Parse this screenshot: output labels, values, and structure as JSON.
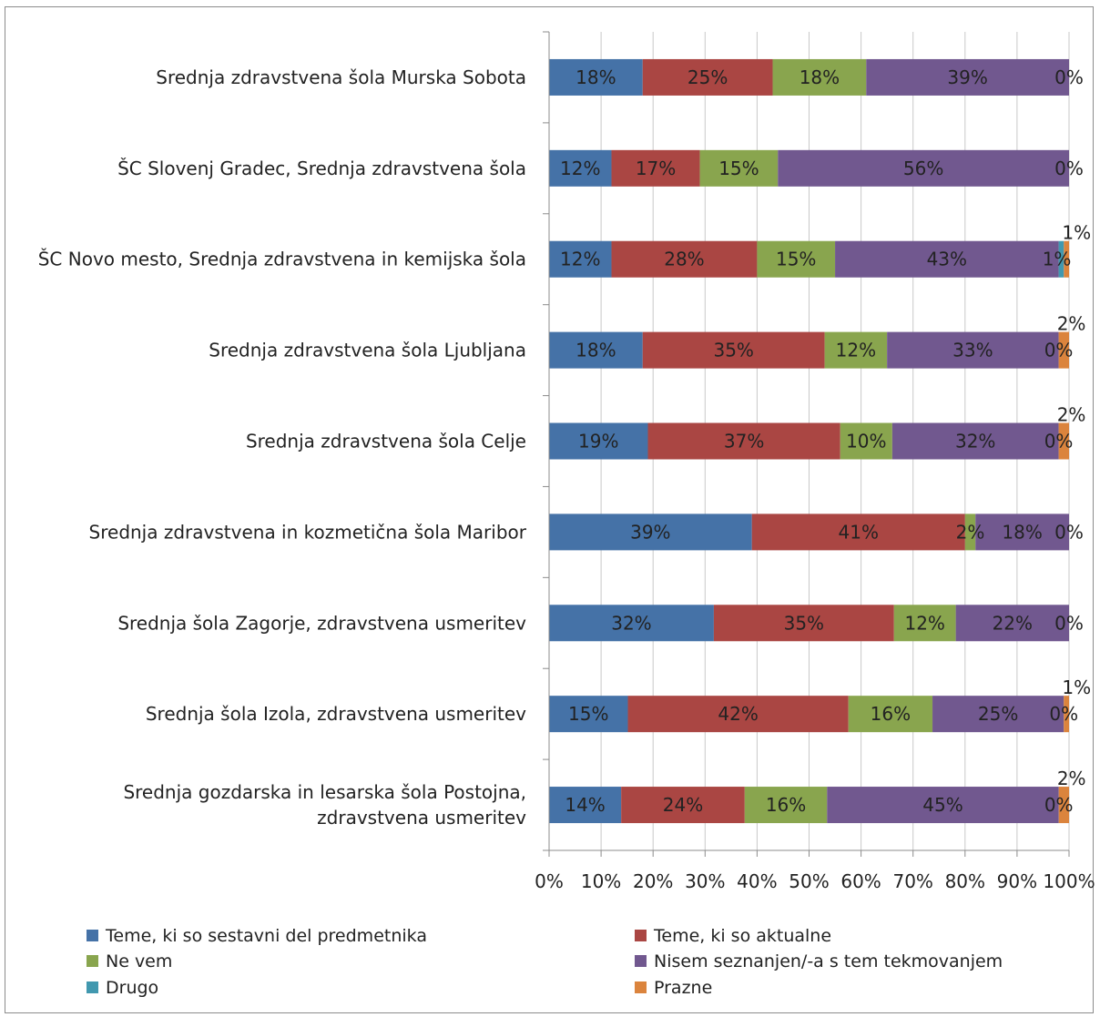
{
  "chart_data": {
    "type": "bar",
    "orientation": "horizontal",
    "stacked": "100%",
    "categories": [
      [
        "Srednja zdravstvena šola Murska Sobota"
      ],
      [
        "ŠC Slovenj Gradec, Srednja zdravstvena šola"
      ],
      [
        "ŠC Novo mesto, Srednja zdravstvena in kemijska šola"
      ],
      [
        "Srednja zdravstvena šola Ljubljana"
      ],
      [
        "Srednja zdravstvena šola Celje"
      ],
      [
        "Srednja zdravstvena in kozmetična šola Maribor"
      ],
      [
        "Srednja šola Zagorje, zdravstvena usmeritev"
      ],
      [
        "Srednja šola Izola, zdravstvena usmeritev"
      ],
      [
        "Srednja gozdarska in lesarska šola Postojna,",
        "zdravstvena usmeritev"
      ]
    ],
    "series": [
      {
        "name": "Teme, ki so sestavni del predmetnika",
        "color": "#4572A7",
        "values": [
          18,
          12,
          12,
          18,
          19,
          39,
          32,
          15,
          14
        ],
        "labels": [
          "18%",
          "12%",
          "12%",
          "18%",
          "19%",
          "39%",
          "32%",
          "15%",
          "14%"
        ]
      },
      {
        "name": "Teme, ki so aktualne",
        "color": "#AA4643",
        "values": [
          25,
          17,
          28,
          35,
          37,
          41,
          35,
          42,
          24
        ],
        "labels": [
          "25%",
          "17%",
          "28%",
          "35%",
          "37%",
          "41%",
          "35%",
          "42%",
          "24%"
        ]
      },
      {
        "name": "Ne vem",
        "color": "#89A54E",
        "values": [
          18,
          15,
          15,
          12,
          10,
          2,
          12,
          16,
          16
        ],
        "labels": [
          "18%",
          "15%",
          "15%",
          "12%",
          "10%",
          "2%",
          "12%",
          "16%",
          "16%"
        ]
      },
      {
        "name": "Nisem seznanjen/-a s tem tekmovanjem",
        "color": "#71588F",
        "values": [
          39,
          56,
          43,
          33,
          32,
          18,
          22,
          25,
          45
        ],
        "labels": [
          "39%",
          "56%",
          "43%",
          "33%",
          "32%",
          "18%",
          "22%",
          "25%",
          "45%"
        ]
      },
      {
        "name": "Drugo",
        "color": "#4198AF",
        "values": [
          0,
          0,
          1,
          0,
          0,
          0,
          0,
          0,
          0
        ],
        "labels": [
          "0%",
          "0%",
          "1%",
          "0%",
          "0%",
          "0%",
          "0%",
          "0%",
          "0%"
        ]
      },
      {
        "name": "Prazne",
        "color": "#DB843D",
        "values": [
          0,
          0,
          1,
          2,
          2,
          0,
          0,
          1,
          2
        ],
        "labels": [
          "",
          "",
          "1%",
          "2%",
          "2%",
          "",
          "",
          "1%",
          "2%"
        ]
      }
    ],
    "xlim": [
      0,
      100
    ],
    "x_ticks": [
      "0%",
      "10%",
      "20%",
      "30%",
      "40%",
      "50%",
      "60%",
      "70%",
      "80%",
      "90%",
      "100%"
    ],
    "grid": true,
    "legend_position": "bottom"
  }
}
